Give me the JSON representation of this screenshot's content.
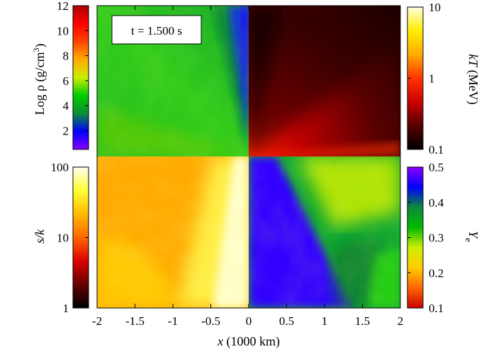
{
  "chart_data": {
    "type": "heatmap",
    "time_label": "t = 1.500 s",
    "xlabel": "x (1000 km)",
    "xlim": [
      -2,
      2
    ],
    "xticks": [
      "-2",
      "-1.5",
      "-1",
      "-0.5",
      "0",
      "0.5",
      "1",
      "1.5",
      "2"
    ],
    "quadrants": [
      {
        "position": "top-left",
        "quantity": "Log ρ (g/cm3)"
      },
      {
        "position": "top-right",
        "quantity": "kT (MeV)"
      },
      {
        "position": "bottom-left",
        "quantity": "s/k"
      },
      {
        "position": "bottom-right",
        "quantity": "Ye"
      }
    ],
    "colorbars": [
      {
        "position": "top-left",
        "label_base": "Log ρ (g/cm",
        "label_sup": "3",
        "label_tail": ")",
        "scale": "linear",
        "range": [
          0.5,
          12
        ],
        "ticks": [
          "2",
          "4",
          "6",
          "8",
          "10",
          "12"
        ],
        "tick_values": [
          2,
          4,
          6,
          8,
          10,
          12
        ],
        "colors": [
          "#8a00ff",
          "#0000ff",
          "#0d8f33",
          "#00cc00",
          "#ccee00",
          "#ffaa00",
          "#ff4400",
          "#ff0000",
          "#aa0000"
        ]
      },
      {
        "position": "top-right",
        "label_italic": "kT",
        "label_rest": " (MeV)",
        "scale": "log",
        "range": [
          0.1,
          10
        ],
        "ticks": [
          "0.1",
          "1",
          "10"
        ],
        "tick_values": [
          0.1,
          1,
          10
        ],
        "colors": [
          "#000000",
          "#550000",
          "#cc0000",
          "#ff3300",
          "#ffaa00",
          "#ffee00",
          "#ffffdd"
        ]
      },
      {
        "position": "bottom-left",
        "label_italic": "s/k",
        "scale": "log",
        "range": [
          1,
          100
        ],
        "ticks": [
          "1",
          "10",
          "100"
        ],
        "tick_values": [
          1,
          10,
          100
        ],
        "colors": [
          "#000000",
          "#660000",
          "#dd0000",
          "#ff6600",
          "#ffbb00",
          "#ffff33",
          "#ffffee"
        ]
      },
      {
        "position": "bottom-right",
        "label_italic": "Y",
        "label_sub": "e",
        "scale": "linear",
        "range": [
          0.1,
          0.5
        ],
        "ticks": [
          "0.1",
          "0.2",
          "0.3",
          "0.4",
          "0.5"
        ],
        "tick_values": [
          0.1,
          0.2,
          0.3,
          0.4,
          0.5
        ],
        "colors": [
          "#cc0000",
          "#ff6600",
          "#ffcc00",
          "#ccee00",
          "#00bb00",
          "#0e8a3a",
          "#0000ff",
          "#8800ff"
        ]
      }
    ]
  }
}
